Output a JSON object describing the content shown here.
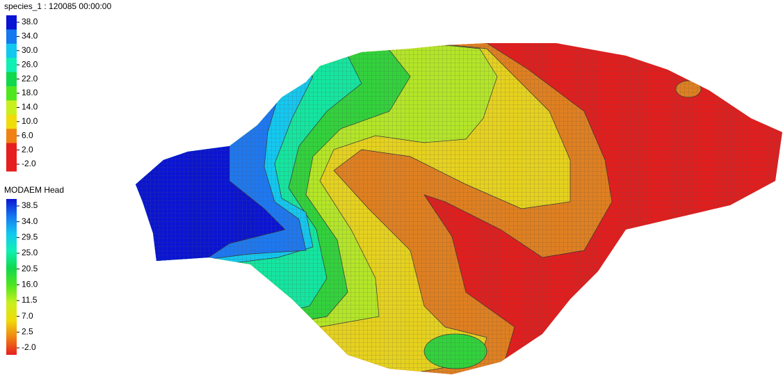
{
  "legends": [
    {
      "title": "species_1 : 120085 00:00:00",
      "labels": [
        "38.0",
        "34.0",
        "30.0",
        "26.0",
        "22.0",
        "18.0",
        "14.0",
        "10.0",
        "6.0",
        "2.0",
        "-2.0"
      ],
      "colors": [
        "#0a14d2",
        "#1478f0",
        "#10c8f0",
        "#10f0b4",
        "#10d84c",
        "#50e61e",
        "#c8f01e",
        "#f0dc0a",
        "#f08214",
        "#e61e1e"
      ]
    },
    {
      "title": "MODAEM Head",
      "labels": [
        "38.5",
        "34.0",
        "29.5",
        "25.0",
        "20.5",
        "16.0",
        "11.5",
        "7.0",
        "2.5",
        "-2.0"
      ],
      "colors": [
        "#0a14d2",
        "#1478f0",
        "#10c8f0",
        "#10f0b4",
        "#10d84c",
        "#50e61e",
        "#c8f01e",
        "#f0dc0a",
        "#f08214",
        "#e61e1e"
      ]
    }
  ]
}
